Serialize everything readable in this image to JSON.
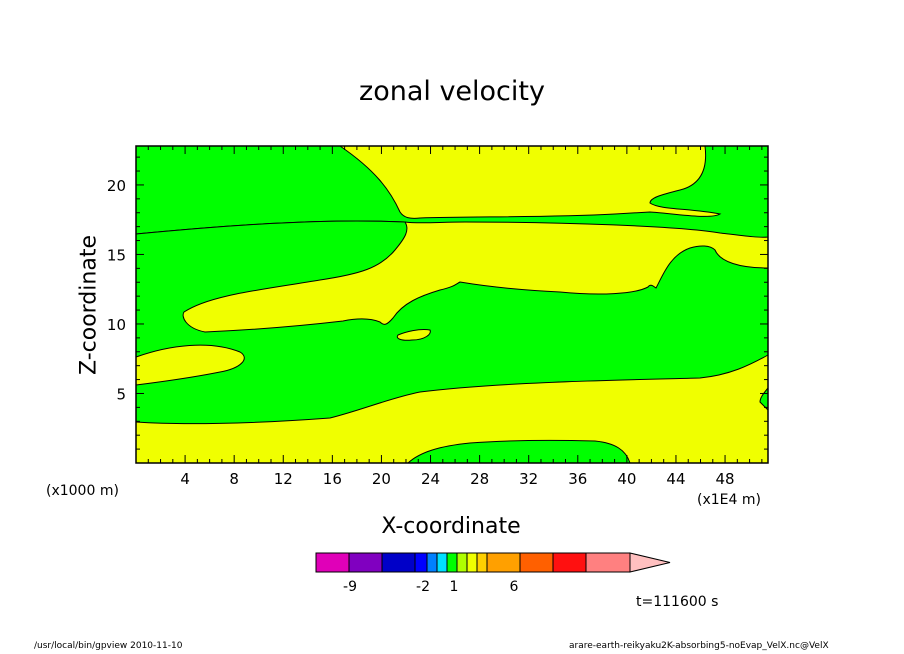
{
  "chart_data": {
    "type": "contour",
    "title": "zonal velocity",
    "xlabel": "X-coordinate",
    "ylabel": "Z-coordinate",
    "x_unit_left": "(x1000 m)",
    "x_unit_right": "(x1E4 m)",
    "xlim": [
      0,
      51.5
    ],
    "ylim": [
      0,
      22.8
    ],
    "xticks": [
      "4",
      "8",
      "12",
      "16",
      "20",
      "24",
      "28",
      "32",
      "36",
      "40",
      "44",
      "48"
    ],
    "yticks": [
      "5",
      "10",
      "15",
      "20"
    ],
    "fill_levels": {
      "background_value_range": [
        1,
        2
      ],
      "background_color": "#f0ff00",
      "region_value_range": [
        0,
        1
      ],
      "region_color": "#00ff00"
    },
    "colorbar": {
      "colors": [
        "#e000b8",
        "#8000c0",
        "#0000c8",
        "#0000ff",
        "#0080ff",
        "#00e0ff",
        "#00ff00",
        "#b0ff00",
        "#f0ff00",
        "#ffd000",
        "#ffa000",
        "#ff6000",
        "#ff1010",
        "#ff8080",
        "#ffc0c0"
      ],
      "labels": [
        "-9",
        "-2",
        "1",
        "6"
      ]
    },
    "annotation": "t=111600 s"
  },
  "footer": {
    "left": "/usr/local/bin/gpview   2010-11-10",
    "right": "arare-earth-reikyaku2K-absorbing5-noEvap_VelX.nc@VelX"
  }
}
